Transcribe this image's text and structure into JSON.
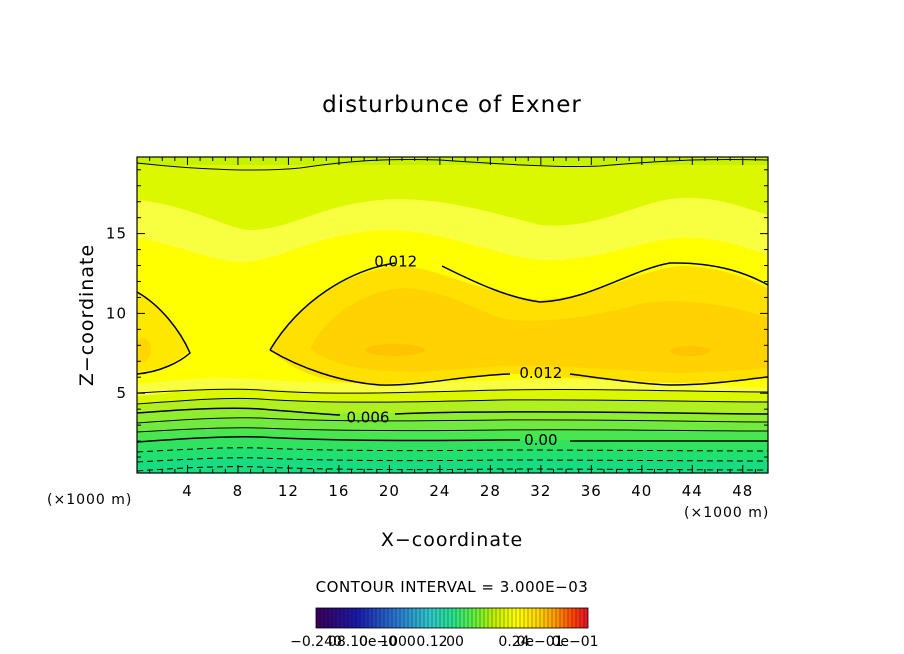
{
  "chart_data": {
    "type": "contour",
    "title": "disturbunce of Exner",
    "xlabel": "X−coordinate",
    "ylabel": "Z−coordinate",
    "x_unit": "(×1000 m)",
    "y_unit": "(×1000 m)",
    "xlim": [
      0,
      50
    ],
    "ylim": [
      0,
      19.8
    ],
    "x_ticks": [
      4,
      8,
      12,
      16,
      20,
      24,
      28,
      32,
      36,
      40,
      44,
      48
    ],
    "y_ticks": [
      5,
      10,
      15
    ],
    "contour_interval_label": "CONTOUR INTERVAL = 3.000E−03",
    "contour_interval": 0.003,
    "contour_labels": [
      {
        "text": "0.012",
        "x": 20.5,
        "y": 13.2
      },
      {
        "text": "0.012",
        "x": 32.0,
        "y": 6.2
      },
      {
        "text": "0.006",
        "x": 18.3,
        "y": 3.4
      },
      {
        "text": "0.00",
        "x": 32.0,
        "y": 2.0
      }
    ],
    "colorbar_labels": [
      "−0.240",
      "08.10",
      "0e−0",
      "1000",
      "0.12",
      "00",
      "0.24",
      "0e−01",
      "0e−01"
    ],
    "colormap": [
      "#3a005a",
      "#1a1aa8",
      "#2a7ad0",
      "#2fc8c8",
      "#28e090",
      "#60f040",
      "#c8f000",
      "#ffff00",
      "#ffd400",
      "#ff9a00",
      "#ff4a00",
      "#e01030"
    ],
    "legend_placement": "bottom-center"
  }
}
